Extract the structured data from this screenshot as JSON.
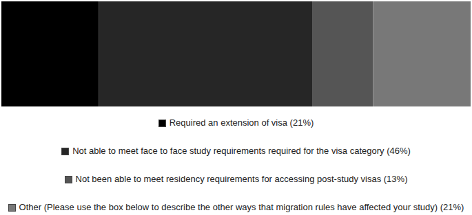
{
  "chart_data": {
    "type": "bar",
    "orientation": "horizontal",
    "stacked": true,
    "tick_labels": false,
    "legend": "bottom",
    "categories": [
      null
    ],
    "series": [
      {
        "name": "Required an extension of visa (21%)",
        "color": "#000000",
        "values": [
          21
        ]
      },
      {
        "name": "Not able to meet face to face study requirements required for the visa category (46%)",
        "color": "#262626",
        "values": [
          46
        ]
      },
      {
        "name": "Not been able to meet residency requirements for accessing post-study visas (13%)",
        "color": "#555555",
        "values": [
          13
        ]
      },
      {
        "name": "Other (Please use the box below to describe the other ways that migration rules have affected your study) (21%)",
        "color": "#787878",
        "values": [
          21
        ]
      }
    ]
  }
}
